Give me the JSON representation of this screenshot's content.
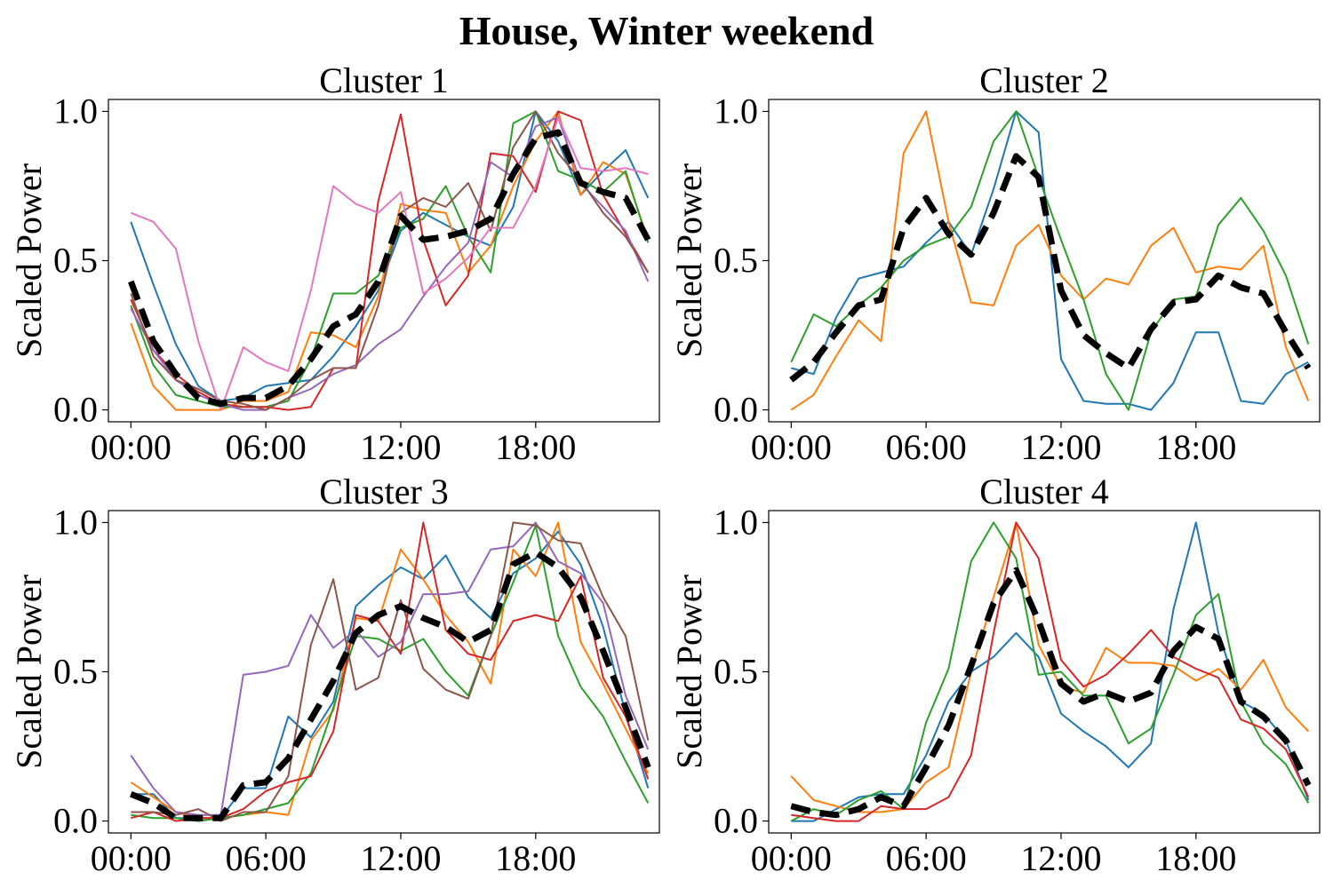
{
  "figure": {
    "title": "House, Winter weekend"
  },
  "chart_data": [
    {
      "type": "line",
      "title": "Cluster 1",
      "ylabel": "Scaled Power",
      "xlabel": "",
      "xticks": [
        "00:00",
        "06:00",
        "12:00",
        "18:00"
      ],
      "yticks": [
        "0.0",
        "0.5",
        "1.0"
      ],
      "xlim": [
        -1,
        23.5
      ],
      "ylim": [
        -0.04,
        1.04
      ],
      "x": [
        0,
        1,
        2,
        3,
        4,
        5,
        6,
        7,
        8,
        9,
        10,
        11,
        12,
        13,
        14,
        15,
        16,
        17,
        18,
        19,
        20,
        21,
        22,
        23
      ],
      "series": [
        {
          "color": "#1f77b4",
          "values": [
            0.63,
            0.42,
            0.22,
            0.08,
            0.03,
            0.04,
            0.08,
            0.09,
            0.1,
            0.18,
            0.28,
            0.4,
            0.6,
            0.66,
            0.62,
            0.58,
            0.55,
            0.68,
            1.0,
            0.9,
            0.72,
            0.8,
            0.87,
            0.71
          ]
        },
        {
          "color": "#ff7f0e",
          "values": [
            0.29,
            0.08,
            0.0,
            0.0,
            0.0,
            0.03,
            0.03,
            0.06,
            0.26,
            0.25,
            0.21,
            0.38,
            0.69,
            0.67,
            0.66,
            0.46,
            0.55,
            0.75,
            0.9,
            1.0,
            0.72,
            0.83,
            0.79,
            0.57
          ]
        },
        {
          "color": "#2ca02c",
          "values": [
            0.35,
            0.15,
            0.05,
            0.03,
            0.01,
            0.01,
            0.01,
            0.03,
            0.17,
            0.39,
            0.39,
            0.45,
            0.61,
            0.64,
            0.75,
            0.58,
            0.46,
            0.96,
            1.0,
            0.8,
            0.77,
            0.73,
            0.8,
            0.56
          ]
        },
        {
          "color": "#d62728",
          "values": [
            0.37,
            0.2,
            0.12,
            0.06,
            0.02,
            0.01,
            0.01,
            0.0,
            0.01,
            0.14,
            0.14,
            0.7,
            0.99,
            0.57,
            0.35,
            0.45,
            0.86,
            0.85,
            0.73,
            1.0,
            0.97,
            0.72,
            0.59,
            0.46
          ]
        },
        {
          "color": "#9467bd",
          "values": [
            0.34,
            0.2,
            0.1,
            0.05,
            0.02,
            0.0,
            0.0,
            0.04,
            0.07,
            0.12,
            0.15,
            0.22,
            0.27,
            0.38,
            0.48,
            0.56,
            0.83,
            0.78,
            0.95,
            0.98,
            0.76,
            0.68,
            0.6,
            0.43
          ]
        },
        {
          "color": "#8c564b",
          "values": [
            0.39,
            0.18,
            0.1,
            0.07,
            0.03,
            0.02,
            0.0,
            0.04,
            0.1,
            0.14,
            0.14,
            0.35,
            0.66,
            0.71,
            0.68,
            0.76,
            0.6,
            0.88,
            1.0,
            0.86,
            0.77,
            0.66,
            0.58,
            0.46
          ]
        },
        {
          "color": "#e377c2",
          "values": [
            0.66,
            0.63,
            0.54,
            0.23,
            0.0,
            0.21,
            0.16,
            0.13,
            0.4,
            0.75,
            0.69,
            0.66,
            0.73,
            0.39,
            0.44,
            0.51,
            0.61,
            0.61,
            0.75,
            0.98,
            0.81,
            0.8,
            0.81,
            0.79
          ]
        }
      ],
      "mean": {
        "color": "#000000",
        "style": "dashed",
        "values": [
          0.43,
          0.23,
          0.12,
          0.04,
          0.02,
          0.04,
          0.04,
          0.08,
          0.17,
          0.28,
          0.32,
          0.43,
          0.65,
          0.57,
          0.58,
          0.6,
          0.64,
          0.79,
          0.91,
          0.93,
          0.76,
          0.73,
          0.71,
          0.57
        ]
      }
    },
    {
      "type": "line",
      "title": "Cluster 2",
      "ylabel": "Scaled Power",
      "xlabel": "",
      "xticks": [
        "00:00",
        "06:00",
        "12:00",
        "18:00"
      ],
      "yticks": [
        "0.0",
        "0.5",
        "1.0"
      ],
      "xlim": [
        -1,
        23.5
      ],
      "ylim": [
        -0.04,
        1.04
      ],
      "x": [
        0,
        1,
        2,
        3,
        4,
        5,
        6,
        7,
        8,
        9,
        10,
        11,
        12,
        13,
        14,
        15,
        16,
        17,
        18,
        19,
        20,
        21,
        22,
        23
      ],
      "series": [
        {
          "color": "#1f77b4",
          "values": [
            0.14,
            0.12,
            0.31,
            0.44,
            0.46,
            0.48,
            0.56,
            0.63,
            0.52,
            0.74,
            1.0,
            0.93,
            0.17,
            0.03,
            0.02,
            0.02,
            0.0,
            0.09,
            0.26,
            0.26,
            0.03,
            0.02,
            0.12,
            0.16
          ]
        },
        {
          "color": "#ff7f0e",
          "values": [
            0.0,
            0.05,
            0.18,
            0.3,
            0.23,
            0.86,
            1.0,
            0.63,
            0.36,
            0.35,
            0.55,
            0.62,
            0.45,
            0.37,
            0.44,
            0.42,
            0.55,
            0.61,
            0.46,
            0.48,
            0.47,
            0.55,
            0.21,
            0.03
          ]
        },
        {
          "color": "#2ca02c",
          "values": [
            0.16,
            0.32,
            0.28,
            0.35,
            0.41,
            0.5,
            0.55,
            0.58,
            0.68,
            0.9,
            1.0,
            0.78,
            0.57,
            0.37,
            0.12,
            0.0,
            0.26,
            0.37,
            0.38,
            0.62,
            0.71,
            0.6,
            0.45,
            0.22
          ]
        }
      ],
      "mean": {
        "color": "#000000",
        "style": "dashed",
        "values": [
          0.1,
          0.16,
          0.26,
          0.35,
          0.37,
          0.61,
          0.71,
          0.59,
          0.52,
          0.66,
          0.85,
          0.78,
          0.4,
          0.25,
          0.19,
          0.14,
          0.27,
          0.36,
          0.37,
          0.45,
          0.41,
          0.39,
          0.26,
          0.14
        ]
      }
    },
    {
      "type": "line",
      "title": "Cluster 3",
      "ylabel": "Scaled Power",
      "xlabel": "",
      "xticks": [
        "00:00",
        "06:00",
        "12:00",
        "18:00"
      ],
      "yticks": [
        "0.0",
        "0.5",
        "1.0"
      ],
      "xlim": [
        -1,
        23.5
      ],
      "ylim": [
        -0.04,
        1.04
      ],
      "x": [
        0,
        1,
        2,
        3,
        4,
        5,
        6,
        7,
        8,
        9,
        10,
        11,
        12,
        13,
        14,
        15,
        16,
        17,
        18,
        19,
        20,
        21,
        22,
        23
      ],
      "series": [
        {
          "color": "#1f77b4",
          "values": [
            0.09,
            0.09,
            0.01,
            0.01,
            0.01,
            0.11,
            0.11,
            0.35,
            0.28,
            0.4,
            0.72,
            0.79,
            0.85,
            0.81,
            0.89,
            0.75,
            0.68,
            0.83,
            0.88,
            0.97,
            0.86,
            0.65,
            0.36,
            0.11
          ]
        },
        {
          "color": "#ff7f0e",
          "values": [
            0.13,
            0.08,
            0.03,
            0.01,
            0.01,
            0.02,
            0.03,
            0.02,
            0.27,
            0.37,
            0.68,
            0.67,
            0.91,
            0.81,
            0.69,
            0.6,
            0.46,
            0.91,
            0.82,
            1.0,
            0.6,
            0.46,
            0.31,
            0.16
          ]
        },
        {
          "color": "#2ca02c",
          "values": [
            0.02,
            0.01,
            0.01,
            0.0,
            0.01,
            0.02,
            0.04,
            0.06,
            0.16,
            0.38,
            0.62,
            0.61,
            0.57,
            0.61,
            0.5,
            0.42,
            0.62,
            0.8,
            0.99,
            0.62,
            0.45,
            0.35,
            0.2,
            0.06
          ]
        },
        {
          "color": "#d62728",
          "values": [
            0.01,
            0.03,
            0.0,
            0.01,
            0.01,
            0.04,
            0.1,
            0.13,
            0.15,
            0.3,
            0.69,
            0.67,
            0.56,
            1.0,
            0.64,
            0.56,
            0.54,
            0.67,
            0.69,
            0.67,
            0.82,
            0.48,
            0.35,
            0.14
          ]
        },
        {
          "color": "#9467bd",
          "values": [
            0.22,
            0.11,
            0.03,
            0.02,
            0.02,
            0.49,
            0.5,
            0.52,
            0.69,
            0.58,
            0.64,
            0.55,
            0.6,
            0.76,
            0.76,
            0.77,
            0.91,
            0.92,
            1.0,
            0.87,
            0.83,
            0.73,
            0.42,
            0.24
          ]
        },
        {
          "color": "#8c564b",
          "values": [
            0.03,
            0.03,
            0.02,
            0.04,
            0.0,
            0.03,
            0.03,
            0.15,
            0.59,
            0.81,
            0.44,
            0.48,
            0.74,
            0.51,
            0.44,
            0.41,
            0.62,
            1.0,
            0.99,
            0.94,
            0.93,
            0.75,
            0.62,
            0.27
          ]
        }
      ],
      "mean": {
        "color": "#000000",
        "style": "dashed",
        "values": [
          0.09,
          0.06,
          0.01,
          0.01,
          0.01,
          0.12,
          0.13,
          0.21,
          0.34,
          0.47,
          0.63,
          0.69,
          0.72,
          0.68,
          0.65,
          0.6,
          0.64,
          0.86,
          0.9,
          0.85,
          0.75,
          0.57,
          0.38,
          0.18
        ]
      }
    },
    {
      "type": "line",
      "title": "Cluster 4",
      "ylabel": "Scaled Power",
      "xlabel": "",
      "xticks": [
        "00:00",
        "06:00",
        "12:00",
        "18:00"
      ],
      "yticks": [
        "0.0",
        "0.5",
        "1.0"
      ],
      "xlim": [
        -1,
        23.5
      ],
      "ylim": [
        -0.04,
        1.04
      ],
      "x": [
        0,
        1,
        2,
        3,
        4,
        5,
        6,
        7,
        8,
        9,
        10,
        11,
        12,
        13,
        14,
        15,
        16,
        17,
        18,
        19,
        20,
        21,
        22,
        23
      ],
      "series": [
        {
          "color": "#1f77b4",
          "values": [
            0.0,
            0.0,
            0.04,
            0.08,
            0.09,
            0.09,
            0.22,
            0.4,
            0.5,
            0.55,
            0.63,
            0.55,
            0.36,
            0.3,
            0.25,
            0.18,
            0.26,
            0.71,
            1.0,
            0.63,
            0.4,
            0.36,
            0.27,
            0.07
          ]
        },
        {
          "color": "#ff7f0e",
          "values": [
            0.15,
            0.07,
            0.05,
            0.03,
            0.03,
            0.04,
            0.13,
            0.18,
            0.5,
            0.75,
            1.0,
            0.59,
            0.45,
            0.43,
            0.58,
            0.53,
            0.53,
            0.52,
            0.47,
            0.51,
            0.44,
            0.54,
            0.38,
            0.3
          ]
        },
        {
          "color": "#2ca02c",
          "values": [
            0.0,
            0.04,
            0.02,
            0.07,
            0.1,
            0.04,
            0.33,
            0.51,
            0.87,
            1.0,
            0.88,
            0.49,
            0.5,
            0.42,
            0.42,
            0.26,
            0.31,
            0.49,
            0.69,
            0.76,
            0.4,
            0.26,
            0.19,
            0.06
          ]
        },
        {
          "color": "#d62728",
          "values": [
            0.02,
            0.01,
            0.0,
            0.0,
            0.05,
            0.04,
            0.04,
            0.08,
            0.22,
            0.63,
            1.0,
            0.88,
            0.54,
            0.45,
            0.49,
            0.56,
            0.64,
            0.55,
            0.51,
            0.48,
            0.34,
            0.31,
            0.24,
            0.08
          ]
        }
      ],
      "mean": {
        "color": "#000000",
        "style": "dashed",
        "values": [
          0.05,
          0.03,
          0.02,
          0.04,
          0.08,
          0.05,
          0.18,
          0.32,
          0.52,
          0.73,
          0.84,
          0.67,
          0.46,
          0.4,
          0.43,
          0.4,
          0.43,
          0.57,
          0.65,
          0.61,
          0.4,
          0.35,
          0.27,
          0.12
        ]
      }
    }
  ]
}
